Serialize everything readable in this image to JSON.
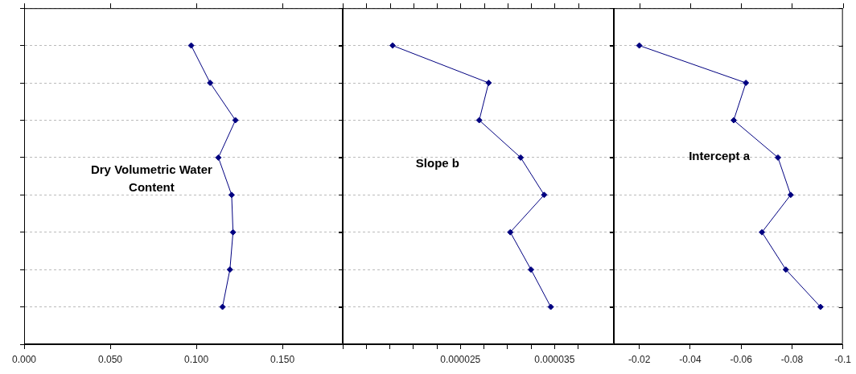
{
  "chart_data": [
    {
      "type": "line",
      "orientation": "horizontal",
      "title": "Dry Volumetric Water Content",
      "categories": [
        null,
        null,
        null,
        null,
        null,
        null,
        null,
        null
      ],
      "values": [
        0.097,
        0.108,
        0.1227,
        0.1128,
        0.1205,
        0.1213,
        0.1195,
        0.1152
      ],
      "color": "#000080",
      "marker": "diamond",
      "xlim": [
        0,
        0.185
      ],
      "xticks": [
        {
          "value": 0,
          "label": "0.000"
        },
        {
          "value": 0.05,
          "label": "0.050"
        },
        {
          "value": 0.1,
          "label": "0.100"
        },
        {
          "value": 0.15,
          "label": "0.150"
        }
      ],
      "grid": "y",
      "tick_labels": "x"
    },
    {
      "type": "line",
      "orientation": "horizontal",
      "title": "Slope b",
      "categories": [
        null,
        null,
        null,
        null,
        null,
        null,
        null,
        null
      ],
      "values": [
        1.78e-05,
        2.8e-05,
        2.7e-05,
        3.14e-05,
        3.39e-05,
        3.03e-05,
        3.25e-05,
        3.46e-05
      ],
      "color": "#000080",
      "marker": "diamond",
      "xlim": [
        1.25e-05,
        4.13e-05
      ],
      "xticks": [
        {
          "value": 1.25e-05,
          "label": null
        },
        {
          "value": 1.5e-05,
          "label": null
        },
        {
          "value": 1.75e-05,
          "label": null
        },
        {
          "value": 2e-05,
          "label": null
        },
        {
          "value": 2.25e-05,
          "label": null
        },
        {
          "value": 2.5e-05,
          "label": "0.000025"
        },
        {
          "value": 2.75e-05,
          "label": null
        },
        {
          "value": 3e-05,
          "label": null
        },
        {
          "value": 3.25e-05,
          "label": null
        },
        {
          "value": 3.5e-05,
          "label": "0.000035"
        },
        {
          "value": 3.75e-05,
          "label": null
        }
      ],
      "grid": "y",
      "tick_labels": "x"
    },
    {
      "type": "line",
      "orientation": "horizontal",
      "title": "Intercept a",
      "categories": [
        null,
        null,
        null,
        null,
        null,
        null,
        null,
        null
      ],
      "values": [
        -0.02,
        -0.0619,
        -0.0571,
        -0.0745,
        -0.0795,
        -0.0682,
        -0.0776,
        -0.0912
      ],
      "color": "#000080",
      "marker": "diamond",
      "xlim": [
        -0.01,
        -0.1
      ],
      "xticks": [
        -0.02,
        -0.04,
        -0.06,
        -0.08,
        -0.1
      ],
      "grid": "y",
      "tick_labels": "x"
    }
  ]
}
